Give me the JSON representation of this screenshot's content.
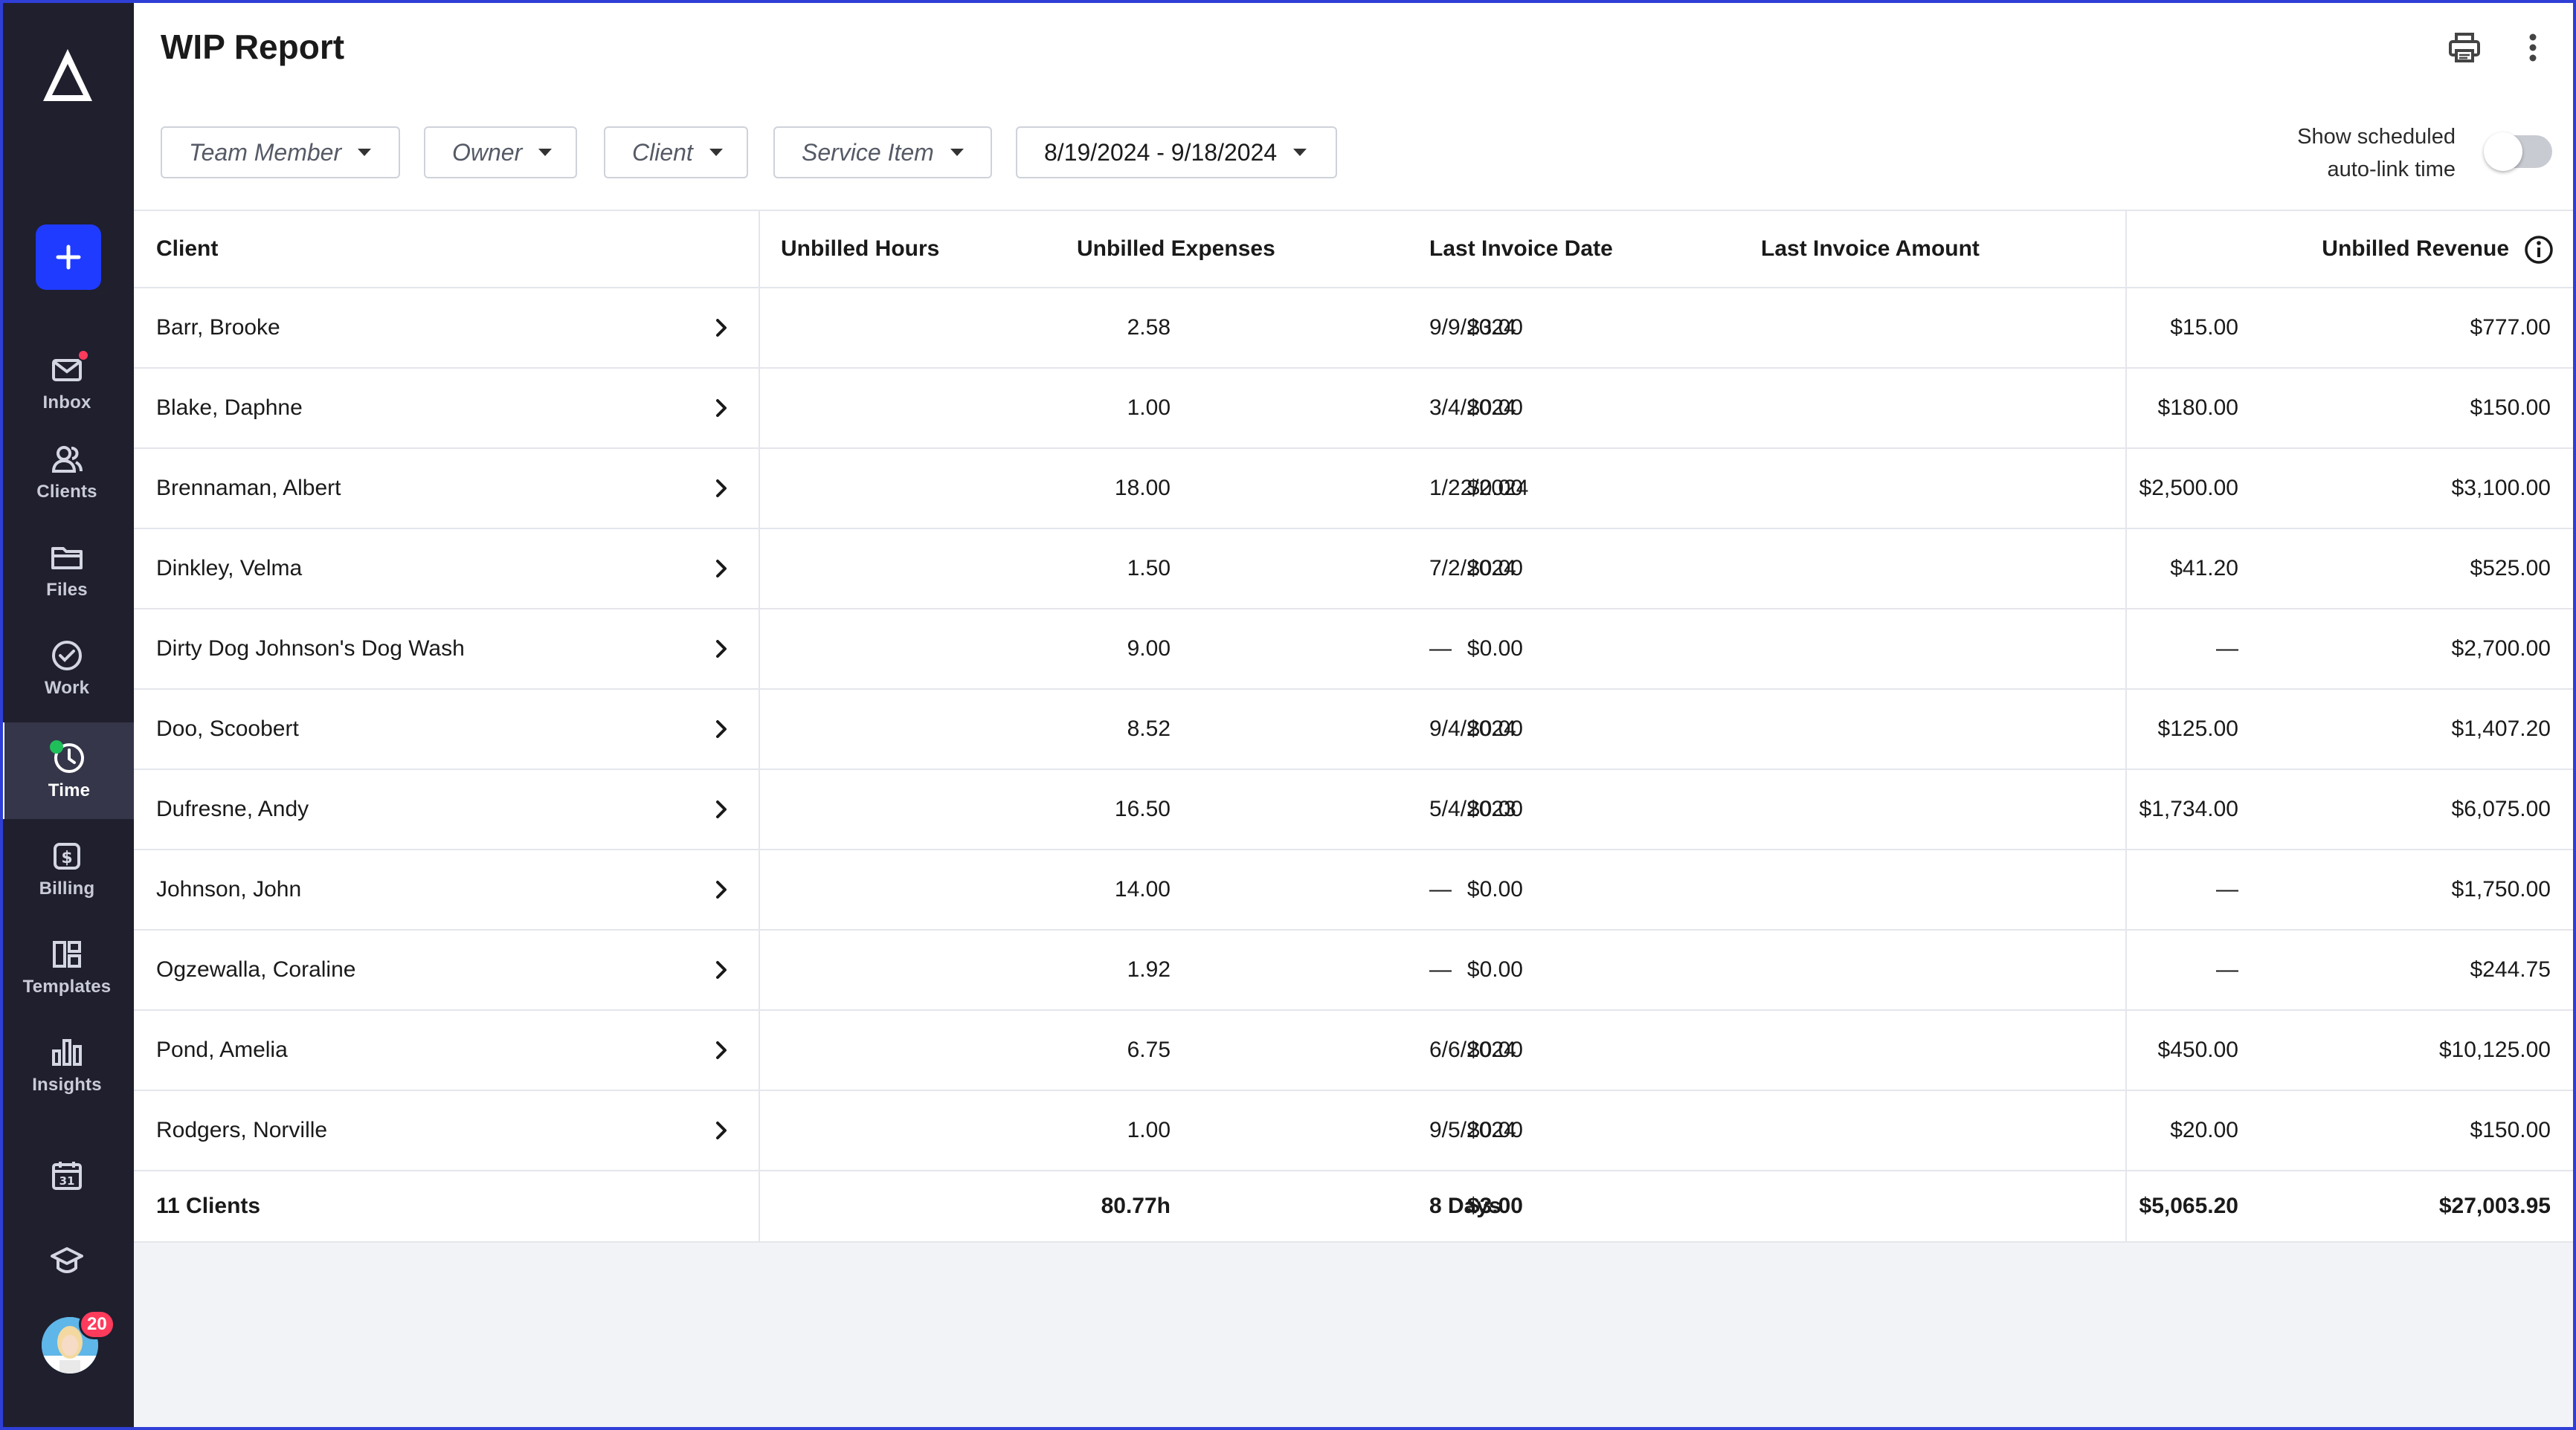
{
  "sidebar": {
    "items": [
      {
        "label": "Inbox",
        "icon": "mail-icon"
      },
      {
        "label": "Clients",
        "icon": "users-icon"
      },
      {
        "label": "Files",
        "icon": "folder-icon"
      },
      {
        "label": "Work",
        "icon": "check-circle-icon"
      },
      {
        "label": "Time",
        "icon": "timer-icon"
      },
      {
        "label": "Billing",
        "icon": "dollar-icon"
      },
      {
        "label": "Templates",
        "icon": "templates-icon"
      },
      {
        "label": "Insights",
        "icon": "bar-chart-icon"
      }
    ],
    "calendar_day": "31",
    "avatar_badge": "20"
  },
  "header": {
    "title": "WIP Report"
  },
  "filters": {
    "team_member": "Team Member",
    "owner": "Owner",
    "client": "Client",
    "service_item": "Service Item",
    "date_range": "8/19/2024 - 9/18/2024",
    "toggle_label_line1": "Show scheduled",
    "toggle_label_line2": "auto-link time"
  },
  "table": {
    "columns": {
      "client": "Client",
      "hours": "Unbilled Hours",
      "expenses": "Unbilled Expenses",
      "last_date": "Last Invoice Date",
      "last_amount": "Last Invoice Amount",
      "revenue": "Unbilled Revenue"
    },
    "rows": [
      {
        "client": "Barr, Brooke",
        "hours": "2.58",
        "expenses": "$3.00",
        "last_date": "9/9/2024",
        "last_amount": "$15.00",
        "revenue": "$777.00"
      },
      {
        "client": "Blake, Daphne",
        "hours": "1.00",
        "expenses": "$0.00",
        "last_date": "3/4/2024",
        "last_amount": "$180.00",
        "revenue": "$150.00"
      },
      {
        "client": "Brennaman, Albert",
        "hours": "18.00",
        "expenses": "$0.00",
        "last_date": "1/22/2024",
        "last_amount": "$2,500.00",
        "revenue": "$3,100.00"
      },
      {
        "client": "Dinkley, Velma",
        "hours": "1.50",
        "expenses": "$0.00",
        "last_date": "7/2/2024",
        "last_amount": "$41.20",
        "revenue": "$525.00"
      },
      {
        "client": "Dirty Dog Johnson's Dog Wash",
        "hours": "9.00",
        "expenses": "$0.00",
        "last_date": "—",
        "last_amount": "—",
        "revenue": "$2,700.00"
      },
      {
        "client": "Doo, Scoobert",
        "hours": "8.52",
        "expenses": "$0.00",
        "last_date": "9/4/2024",
        "last_amount": "$125.00",
        "revenue": "$1,407.20"
      },
      {
        "client": "Dufresne, Andy",
        "hours": "16.50",
        "expenses": "$0.00",
        "last_date": "5/4/2023",
        "last_amount": "$1,734.00",
        "revenue": "$6,075.00"
      },
      {
        "client": "Johnson, John",
        "hours": "14.00",
        "expenses": "$0.00",
        "last_date": "—",
        "last_amount": "—",
        "revenue": "$1,750.00"
      },
      {
        "client": "Ogzewalla, Coraline",
        "hours": "1.92",
        "expenses": "$0.00",
        "last_date": "—",
        "last_amount": "—",
        "revenue": "$244.75"
      },
      {
        "client": "Pond, Amelia",
        "hours": "6.75",
        "expenses": "$0.00",
        "last_date": "6/6/2024",
        "last_amount": "$450.00",
        "revenue": "$10,125.00"
      },
      {
        "client": "Rodgers, Norville",
        "hours": "1.00",
        "expenses": "$0.00",
        "last_date": "9/5/2024",
        "last_amount": "$20.00",
        "revenue": "$150.00"
      }
    ],
    "totals": {
      "client": "11 Clients",
      "hours": "80.77h",
      "expenses": "$3.00",
      "last_date": "8 Days",
      "last_amount": "$5,065.20",
      "revenue": "$27,003.95"
    }
  },
  "colors": {
    "sidebar_bg": "#1f1f2e",
    "accent": "#1f3bff",
    "badge": "#ff3b5c",
    "status_green": "#1fbf5a"
  }
}
